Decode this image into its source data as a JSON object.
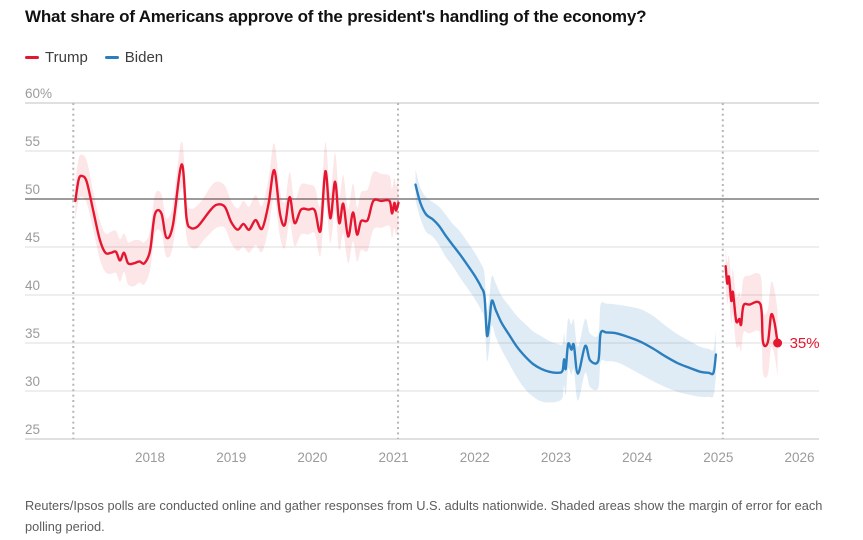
{
  "title": "What share of Americans approve of the president's handling of the economy?",
  "legend": [
    {
      "label": "Trump",
      "color": "#e51730"
    },
    {
      "label": "Biden",
      "color": "#2c7fbe"
    }
  ],
  "footer": "Reuters/Ipsos polls are conducted online and gather responses from U.S. adults nationwide. Shaded areas show the margin of error for each polling period.",
  "colors": {
    "trump_red": "#e51730",
    "biden_blue": "#2c7fbe",
    "trump_band": "rgba(229,23,48,0.11)",
    "biden_band": "rgba(44,127,190,0.15)",
    "grid": "#dedede",
    "grid_strong": "#9c9c9c",
    "grid_edge": "#c2c2c2",
    "tick_label": "#9b9b9b",
    "event_line": "#b6b6b6",
    "title_text": "#111111",
    "footer_text": "#5c5c5c",
    "background": "#ffffff"
  },
  "chart_data": {
    "type": "line",
    "title": "What share of Americans approve of the president's handling of the economy?",
    "xlim": [
      2016.46,
      2026.24
    ],
    "ylim": [
      25,
      60
    ],
    "grid": true,
    "legend_position": "top-left",
    "emphasized_gridline": 50,
    "y_ticks": [
      {
        "v": 60,
        "label": "60%"
      },
      {
        "v": 55,
        "label": "55"
      },
      {
        "v": 50,
        "label": "50"
      },
      {
        "v": 45,
        "label": "45"
      },
      {
        "v": 40,
        "label": "40"
      },
      {
        "v": 35,
        "label": "35"
      },
      {
        "v": 30,
        "label": "30"
      },
      {
        "v": 25,
        "label": "25"
      }
    ],
    "x_ticks": [
      {
        "v": 2018,
        "label": "2018"
      },
      {
        "v": 2019,
        "label": "2019"
      },
      {
        "v": 2020,
        "label": "2020"
      },
      {
        "v": 2021,
        "label": "2021"
      },
      {
        "v": 2022,
        "label": "2022"
      },
      {
        "v": 2023,
        "label": "2023"
      },
      {
        "v": 2024,
        "label": "2024"
      },
      {
        "v": 2025,
        "label": "2025"
      },
      {
        "v": 2026,
        "label": "2026"
      }
    ],
    "event_lines": [
      {
        "v": 2017.055,
        "name": "trump-first-inauguration"
      },
      {
        "v": 2021.055,
        "name": "biden-inauguration"
      },
      {
        "v": 2025.055,
        "name": "trump-second-inauguration"
      }
    ],
    "end_annotation": {
      "label": "35%",
      "value": 35
    },
    "point_format": [
      "year",
      "approval_pct",
      "margin_of_error_pct"
    ],
    "series": [
      {
        "id": "trump-first-term",
        "legend": "Trump",
        "color": "#e51730",
        "band_color": "rgba(229,23,48,0.11)",
        "end_dot": false,
        "points": [
          [
            2017.08,
            49.8,
            2.0
          ],
          [
            2017.12,
            52.0,
            2.2
          ],
          [
            2017.16,
            52.4,
            2.2
          ],
          [
            2017.22,
            51.8,
            2.2
          ],
          [
            2017.3,
            48.8,
            2.0
          ],
          [
            2017.38,
            45.8,
            2.0
          ],
          [
            2017.45,
            44.4,
            2.0
          ],
          [
            2017.52,
            44.4,
            2.2
          ],
          [
            2017.58,
            44.5,
            2.2
          ],
          [
            2017.63,
            43.6,
            2.2
          ],
          [
            2017.68,
            44.4,
            2.0
          ],
          [
            2017.73,
            43.3,
            2.2
          ],
          [
            2017.8,
            43.3,
            2.4
          ],
          [
            2017.87,
            43.5,
            2.2
          ],
          [
            2017.93,
            43.3,
            2.2
          ],
          [
            2018.0,
            44.6,
            2.0
          ],
          [
            2018.06,
            48.4,
            2.0
          ],
          [
            2018.14,
            48.5,
            2.0
          ],
          [
            2018.2,
            46.0,
            2.0
          ],
          [
            2018.28,
            47.2,
            2.2
          ],
          [
            2018.39,
            53.6,
            2.4
          ],
          [
            2018.45,
            48.0,
            2.0
          ],
          [
            2018.5,
            47.0,
            2.0
          ],
          [
            2018.58,
            47.1,
            2.2
          ],
          [
            2018.66,
            47.9,
            2.2
          ],
          [
            2018.74,
            48.8,
            2.4
          ],
          [
            2018.82,
            49.4,
            2.4
          ],
          [
            2018.92,
            49.2,
            2.2
          ],
          [
            2019.0,
            47.6,
            2.2
          ],
          [
            2019.08,
            46.8,
            2.2
          ],
          [
            2019.15,
            47.4,
            2.4
          ],
          [
            2019.22,
            46.8,
            2.4
          ],
          [
            2019.3,
            47.8,
            2.6
          ],
          [
            2019.38,
            46.9,
            2.4
          ],
          [
            2019.46,
            49.5,
            2.6
          ],
          [
            2019.53,
            53.0,
            2.8
          ],
          [
            2019.6,
            48.5,
            2.4
          ],
          [
            2019.66,
            47.3,
            2.4
          ],
          [
            2019.72,
            50.2,
            2.6
          ],
          [
            2019.78,
            47.5,
            2.4
          ],
          [
            2019.86,
            48.9,
            2.6
          ],
          [
            2019.95,
            48.9,
            2.6
          ],
          [
            2020.03,
            48.8,
            2.4
          ],
          [
            2020.1,
            46.7,
            2.6
          ],
          [
            2020.16,
            52.9,
            3.0
          ],
          [
            2020.22,
            48.0,
            2.6
          ],
          [
            2020.28,
            51.8,
            3.0
          ],
          [
            2020.33,
            47.5,
            2.8
          ],
          [
            2020.38,
            49.5,
            3.0
          ],
          [
            2020.44,
            46.1,
            2.8
          ],
          [
            2020.5,
            48.6,
            3.0
          ],
          [
            2020.55,
            46.3,
            2.8
          ],
          [
            2020.6,
            47.7,
            3.0
          ],
          [
            2020.68,
            47.8,
            3.2
          ],
          [
            2020.75,
            49.8,
            3.0
          ],
          [
            2020.85,
            49.8,
            2.8
          ],
          [
            2020.95,
            49.8,
            2.6
          ],
          [
            2020.98,
            48.5,
            2.6
          ],
          [
            2021.01,
            49.6,
            2.6
          ],
          [
            2021.03,
            48.8,
            2.6
          ],
          [
            2021.06,
            49.6,
            2.6
          ]
        ]
      },
      {
        "id": "biden",
        "legend": "Biden",
        "color": "#2c7fbe",
        "band_color": "rgba(44,127,190,0.15)",
        "end_dot": false,
        "points": [
          [
            2021.27,
            51.5,
            1.6
          ],
          [
            2021.33,
            49.6,
            1.6
          ],
          [
            2021.4,
            48.4,
            1.8
          ],
          [
            2021.48,
            47.9,
            1.8
          ],
          [
            2021.56,
            47.2,
            2.0
          ],
          [
            2021.64,
            46.2,
            2.2
          ],
          [
            2021.72,
            45.3,
            2.2
          ],
          [
            2021.82,
            44.2,
            2.4
          ],
          [
            2021.92,
            43.0,
            2.4
          ],
          [
            2022.0,
            42.0,
            2.4
          ],
          [
            2022.08,
            40.8,
            2.4
          ],
          [
            2022.12,
            39.8,
            2.4
          ],
          [
            2022.15,
            35.8,
            2.6
          ],
          [
            2022.18,
            37.2,
            2.6
          ],
          [
            2022.21,
            39.4,
            2.6
          ],
          [
            2022.26,
            38.4,
            2.8
          ],
          [
            2022.33,
            37.1,
            2.8
          ],
          [
            2022.42,
            35.9,
            3.0
          ],
          [
            2022.52,
            34.6,
            3.2
          ],
          [
            2022.62,
            33.6,
            3.4
          ],
          [
            2022.72,
            32.8,
            3.4
          ],
          [
            2022.82,
            32.3,
            3.4
          ],
          [
            2022.92,
            32.0,
            3.2
          ],
          [
            2023.02,
            31.9,
            3.0
          ],
          [
            2023.08,
            32.1,
            2.8
          ],
          [
            2023.1,
            33.3,
            2.7
          ],
          [
            2023.12,
            32.3,
            2.7
          ],
          [
            2023.15,
            34.9,
            2.6
          ],
          [
            2023.19,
            34.3,
            2.6
          ],
          [
            2023.22,
            34.8,
            2.6
          ],
          [
            2023.27,
            31.8,
            2.8
          ],
          [
            2023.36,
            34.7,
            2.8
          ],
          [
            2023.42,
            33.2,
            2.8
          ],
          [
            2023.52,
            33.1,
            2.8
          ],
          [
            2023.55,
            36.0,
            3.0
          ],
          [
            2023.62,
            36.1,
            3.0
          ],
          [
            2023.75,
            36.0,
            3.0
          ],
          [
            2023.9,
            35.6,
            3.2
          ],
          [
            2024.05,
            35.1,
            3.4
          ],
          [
            2024.2,
            34.4,
            3.4
          ],
          [
            2024.35,
            33.6,
            3.2
          ],
          [
            2024.5,
            32.9,
            3.0
          ],
          [
            2024.65,
            32.4,
            2.8
          ],
          [
            2024.78,
            32.0,
            2.6
          ],
          [
            2024.88,
            31.9,
            2.5
          ],
          [
            2024.94,
            31.9,
            2.4
          ],
          [
            2024.97,
            33.8,
            2.4
          ]
        ]
      },
      {
        "id": "trump-second-term",
        "legend": "Trump",
        "color": "#e51730",
        "band_color": "rgba(229,23,48,0.11)",
        "end_dot": true,
        "points": [
          [
            2025.09,
            43.0,
            2.0
          ],
          [
            2025.11,
            41.2,
            2.2
          ],
          [
            2025.13,
            41.9,
            2.2
          ],
          [
            2025.16,
            39.4,
            2.4
          ],
          [
            2025.18,
            40.3,
            2.4
          ],
          [
            2025.22,
            37.3,
            2.6
          ],
          [
            2025.26,
            37.5,
            2.8
          ],
          [
            2025.28,
            36.9,
            2.8
          ],
          [
            2025.31,
            38.9,
            2.8
          ],
          [
            2025.38,
            39.0,
            3.0
          ],
          [
            2025.52,
            39.0,
            3.0
          ],
          [
            2025.55,
            35.1,
            3.2
          ],
          [
            2025.61,
            35.1,
            3.4
          ],
          [
            2025.65,
            37.9,
            3.4
          ],
          [
            2025.69,
            37.2,
            3.4
          ],
          [
            2025.73,
            35.0,
            3.4
          ]
        ]
      }
    ]
  }
}
